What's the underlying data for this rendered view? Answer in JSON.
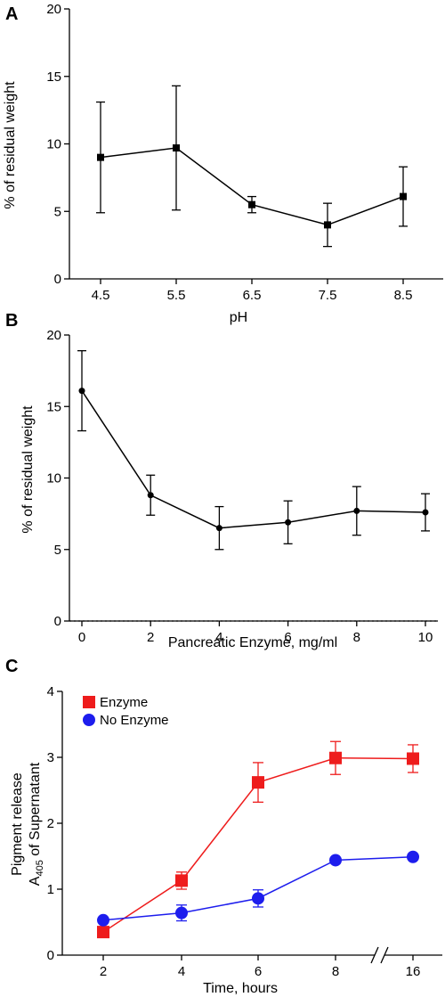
{
  "chart_data": [
    {
      "type": "line",
      "panel_label": "A",
      "title": "",
      "xlabel": "pH",
      "ylabel": "% of residual weight",
      "categories": [
        "4.5",
        "5.5",
        "6.5",
        "7.5",
        "8.5"
      ],
      "yticks": [
        "0",
        "5",
        "10",
        "15",
        "20"
      ],
      "ylim": [
        0,
        20
      ],
      "grid": false,
      "series": [
        {
          "values": [
            9.0,
            9.7,
            5.5,
            4.0,
            6.1
          ],
          "errors": [
            4.1,
            4.6,
            0.6,
            1.6,
            2.2
          ],
          "marker": "square",
          "color": "#000000"
        }
      ]
    },
    {
      "type": "line",
      "panel_label": "B",
      "title": "",
      "xlabel": "Pancreatic Enzyme, mg/ml",
      "ylabel": "% of residual weight",
      "x": [
        0,
        2,
        4,
        6,
        8,
        10
      ],
      "xticks": [
        "0",
        "2",
        "4",
        "6",
        "8",
        "10"
      ],
      "yticks": [
        "0",
        "5",
        "10",
        "15",
        "20"
      ],
      "xlim": [
        0,
        10
      ],
      "ylim": [
        0,
        20
      ],
      "baseline": "dotted line at y = 0",
      "grid": false,
      "series": [
        {
          "values": [
            16.1,
            8.8,
            6.5,
            6.9,
            7.7,
            7.6
          ],
          "errors": [
            2.8,
            1.4,
            1.5,
            1.5,
            1.7,
            1.3
          ],
          "marker": "circle",
          "color": "#000000"
        }
      ]
    },
    {
      "type": "line",
      "panel_label": "C",
      "title": "",
      "xlabel": "Time, hours",
      "ylabel_line1": "Pigment release",
      "ylabel_line2_pre": "A",
      "ylabel_line2_sub": "405",
      "ylabel_line2_post": " of Supernatant",
      "x": [
        2,
        4,
        6,
        8,
        16
      ],
      "xticks": [
        "2",
        "4",
        "6",
        "8",
        "16"
      ],
      "axis_break": "between 8 and 16",
      "yticks": [
        "0",
        "1",
        "2",
        "3",
        "4"
      ],
      "ylim": [
        0,
        4
      ],
      "legend_position": "top-left",
      "grid": false,
      "series": [
        {
          "name": "Enzyme",
          "color": "#ee1c1c",
          "marker": "square",
          "values": [
            0.35,
            1.13,
            2.62,
            2.99,
            2.98
          ],
          "errors": [
            0.0,
            0.13,
            0.3,
            0.25,
            0.21
          ]
        },
        {
          "name": "No Enzyme",
          "color": "#1d1ded",
          "marker": "circle",
          "values": [
            0.53,
            0.64,
            0.86,
            1.44,
            1.49
          ],
          "errors": [
            0.0,
            0.12,
            0.13,
            0.0,
            0.0
          ]
        }
      ]
    }
  ]
}
